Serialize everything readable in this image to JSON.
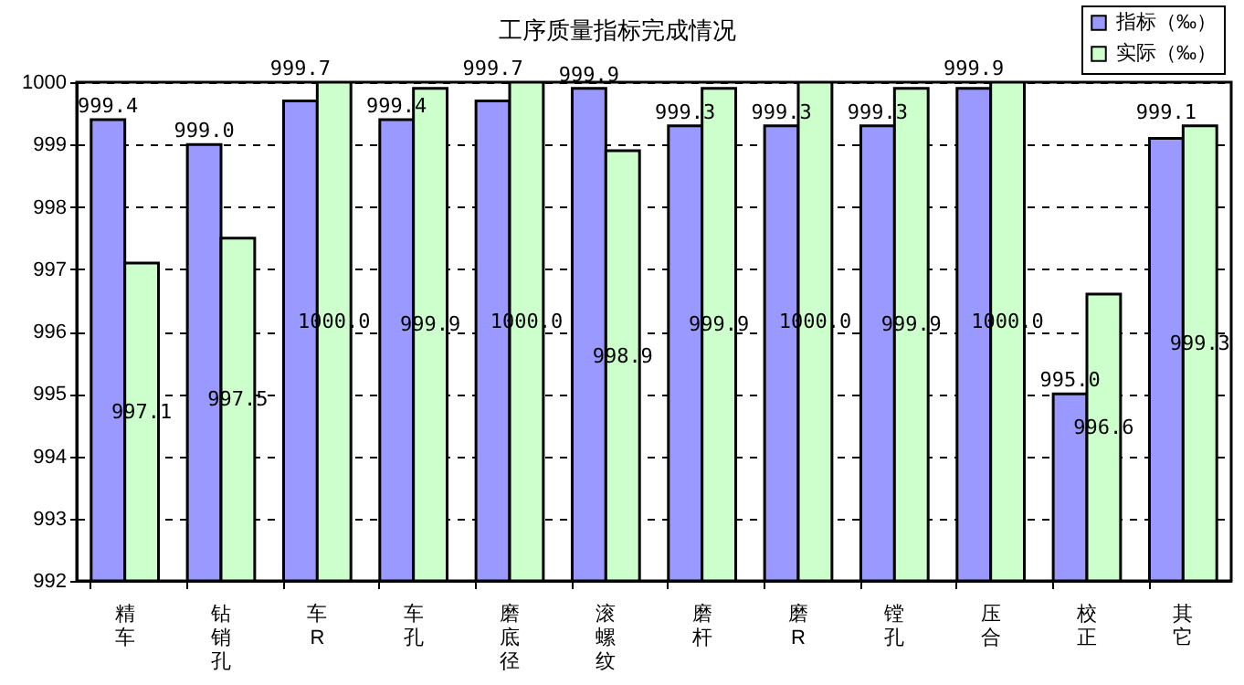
{
  "chart_data": {
    "type": "bar",
    "title": "工序质量指标完成情况",
    "categories": [
      "精车",
      "钻销孔",
      "车R",
      "车孔",
      "磨底径",
      "滚螺纹",
      "磨杆",
      "磨R",
      "镗孔",
      "压合",
      "校正",
      "其它"
    ],
    "series": [
      {
        "name": "指标（‰）",
        "color": "#9999ff",
        "values": [
          999.4,
          999.0,
          999.7,
          999.4,
          999.7,
          999.9,
          999.3,
          999.3,
          999.3,
          999.9,
          995.0,
          999.1
        ],
        "value_labels": [
          "999.4",
          "999.0",
          "999.7",
          "999.4",
          "999.7",
          "999.9",
          "999.3",
          "999.3",
          "999.3",
          "999.9",
          "995.0",
          "999.1"
        ]
      },
      {
        "name": "实际（‰）",
        "color": "#ccffcc",
        "values": [
          997.1,
          997.5,
          1000.0,
          999.9,
          1000.0,
          998.9,
          999.9,
          1000.0,
          999.9,
          1000.0,
          996.6,
          999.3
        ],
        "value_labels": [
          "997.1",
          "997.5",
          "1000.0",
          "999.9",
          "1000.0",
          "998.9",
          "999.9",
          "1000.0",
          "999.9",
          "1000.0",
          "996.6",
          "999.3"
        ]
      }
    ],
    "ylim": [
      992,
      1000
    ],
    "yticks": [
      992,
      993,
      994,
      995,
      996,
      997,
      998,
      999,
      {
        "value": 1000,
        "label": "1000"
      }
    ],
    "grid": "y",
    "legend": "top right",
    "data_labels": true
  }
}
